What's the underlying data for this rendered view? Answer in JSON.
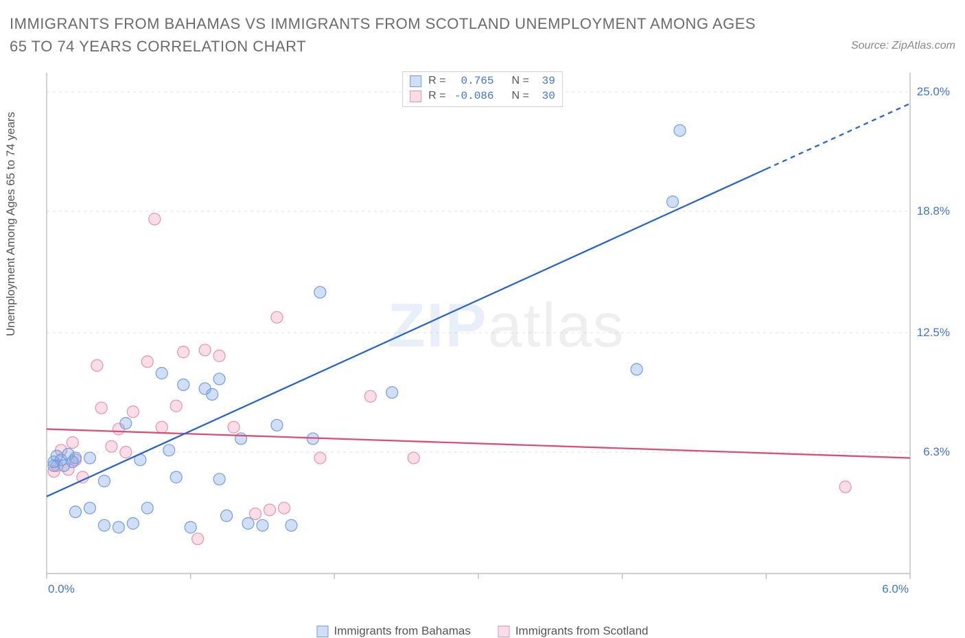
{
  "title": "IMMIGRANTS FROM BAHAMAS VS IMMIGRANTS FROM SCOTLAND UNEMPLOYMENT AMONG AGES 65 TO 74 YEARS CORRELATION CHART",
  "source": "Source: ZipAtlas.com",
  "watermark_a": "ZIP",
  "watermark_b": "atlas",
  "ylabel": "Unemployment Among Ages 65 to 74 years",
  "series": {
    "bahamas": {
      "label": "Immigrants from Bahamas",
      "color_fill": "rgba(120,160,230,0.35)",
      "color_stroke": "#6f9ede",
      "line_color": "#2a63c9",
      "r_label": "R =",
      "r_value": "0.765",
      "n_label": "N =",
      "n_value": "39",
      "regression": {
        "x1": 0.0,
        "y1": 4.0,
        "x2": 5.0,
        "y2": 21.0,
        "dash_after_x": 5.0,
        "x2d": 6.0,
        "y2d": 24.4
      },
      "points": [
        [
          0.05,
          5.8
        ],
        [
          0.05,
          5.6
        ],
        [
          0.07,
          6.1
        ],
        [
          0.1,
          5.9
        ],
        [
          0.12,
          5.6
        ],
        [
          0.15,
          6.2
        ],
        [
          0.18,
          5.8
        ],
        [
          0.2,
          6.0
        ],
        [
          0.2,
          3.2
        ],
        [
          0.3,
          3.4
        ],
        [
          0.3,
          6.0
        ],
        [
          0.4,
          2.5
        ],
        [
          0.4,
          4.8
        ],
        [
          0.5,
          2.4
        ],
        [
          0.55,
          7.8
        ],
        [
          0.6,
          2.6
        ],
        [
          0.65,
          5.9
        ],
        [
          0.7,
          3.4
        ],
        [
          0.8,
          10.4
        ],
        [
          0.85,
          6.4
        ],
        [
          0.9,
          5.0
        ],
        [
          0.95,
          9.8
        ],
        [
          1.0,
          2.4
        ],
        [
          1.1,
          9.6
        ],
        [
          1.15,
          9.3
        ],
        [
          1.2,
          4.9
        ],
        [
          1.2,
          10.1
        ],
        [
          1.25,
          3.0
        ],
        [
          1.35,
          7.0
        ],
        [
          1.4,
          2.6
        ],
        [
          1.5,
          2.5
        ],
        [
          1.6,
          7.7
        ],
        [
          1.7,
          2.5
        ],
        [
          1.85,
          7.0
        ],
        [
          1.9,
          14.6
        ],
        [
          2.4,
          9.4
        ],
        [
          4.1,
          10.6
        ],
        [
          4.35,
          19.3
        ],
        [
          4.4,
          23.0
        ]
      ]
    },
    "scotland": {
      "label": "Immigrants from Scotland",
      "color_fill": "rgba(240,160,185,0.35)",
      "color_stroke": "#e891ad",
      "line_color": "#d94f79",
      "r_label": "R =",
      "r_value": "-0.086",
      "n_label": "N =",
      "n_value": "30",
      "regression": {
        "x1": 0.0,
        "y1": 7.5,
        "x2": 6.0,
        "y2": 6.0
      },
      "points": [
        [
          0.05,
          5.3
        ],
        [
          0.07,
          5.6
        ],
        [
          0.1,
          6.4
        ],
        [
          0.15,
          5.4
        ],
        [
          0.18,
          6.8
        ],
        [
          0.2,
          5.9
        ],
        [
          0.25,
          5.0
        ],
        [
          0.35,
          10.8
        ],
        [
          0.38,
          8.6
        ],
        [
          0.45,
          6.6
        ],
        [
          0.5,
          7.5
        ],
        [
          0.55,
          6.3
        ],
        [
          0.6,
          8.4
        ],
        [
          0.7,
          11.0
        ],
        [
          0.75,
          18.4
        ],
        [
          0.8,
          7.6
        ],
        [
          0.9,
          8.7
        ],
        [
          0.95,
          11.5
        ],
        [
          1.05,
          1.8
        ],
        [
          1.1,
          11.6
        ],
        [
          1.2,
          11.3
        ],
        [
          1.3,
          7.6
        ],
        [
          1.45,
          3.1
        ],
        [
          1.55,
          3.3
        ],
        [
          1.6,
          13.3
        ],
        [
          1.65,
          3.4
        ],
        [
          1.9,
          6.0
        ],
        [
          2.25,
          9.2
        ],
        [
          2.55,
          6.0
        ],
        [
          5.55,
          4.5
        ]
      ]
    }
  },
  "axes": {
    "x": {
      "min": 0.0,
      "max": 6.0,
      "ticks": [
        0,
        1,
        2,
        3,
        4,
        5,
        6
      ],
      "labels_min": "0.0%",
      "labels_max": "6.0%",
      "label_color": "#3f74d1"
    },
    "y": {
      "min": 0.0,
      "max": 26.0,
      "grid": [
        6.3,
        12.5,
        18.8,
        25.0
      ],
      "labels": [
        "6.3%",
        "12.5%",
        "18.8%",
        "25.0%"
      ],
      "label_color": "#3f74d1"
    }
  },
  "style": {
    "marker_radius": 8.5,
    "line_width": 2.3,
    "grid_color": "#e6e6e6",
    "axis_color": "#bdbdbd",
    "tick_color": "#bdbdbd",
    "title_color": "#6b6b6b",
    "stat_label_color": "#555555",
    "stat_value_color": "#3f74d1"
  }
}
